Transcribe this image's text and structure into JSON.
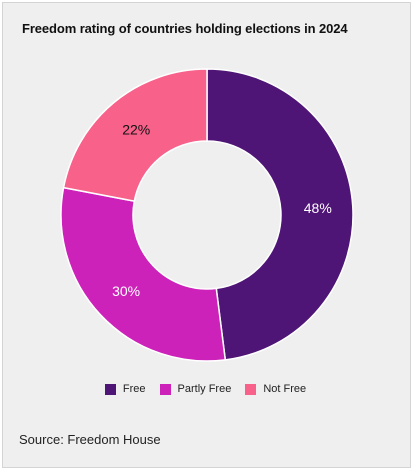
{
  "chart_data": {
    "type": "pie",
    "title": "Freedom rating of countries holding elections in 2024",
    "donut": true,
    "categories": [
      "Free",
      "Partly Free",
      "Not Free"
    ],
    "values": [
      48,
      30,
      22
    ],
    "labels": [
      "48%",
      "30%",
      "22%"
    ],
    "colors": [
      "#4f1576",
      "#cc22b9",
      "#f7618a"
    ],
    "label_colors": [
      "#ffffff",
      "#ffffff",
      "#111111"
    ],
    "legend_position": "bottom"
  },
  "source": "Source: Freedom House"
}
